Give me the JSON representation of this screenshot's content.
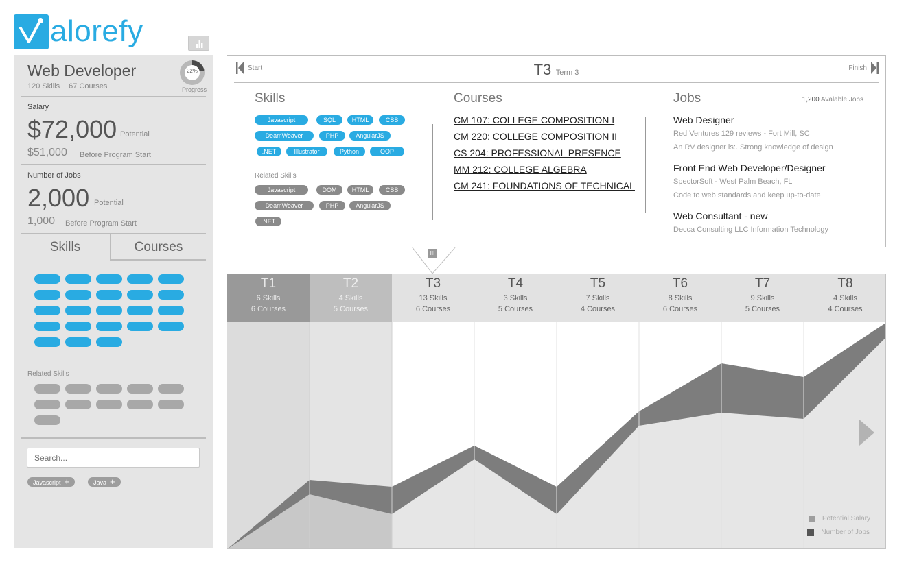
{
  "brand": {
    "logo_text": "alorefy",
    "color": "#29abe2"
  },
  "sidebar": {
    "title": "Web Developer",
    "skills_count": "120 Skills",
    "courses_count": "67 Courses",
    "progress_value": "22%",
    "progress_label": "Progress",
    "progress_fraction": 0.22,
    "salary": {
      "label": "Salary",
      "potential_value": "$72,000",
      "potential_note": "Potential",
      "before_value": "$51,000",
      "before_note": "Before Program Start"
    },
    "jobs": {
      "label": "Number of Jobs",
      "potential_value": "2,000",
      "potential_note": "Potential",
      "before_value": "1,000",
      "before_note": "Before Program Start"
    },
    "tabs": [
      "Skills",
      "Courses"
    ],
    "skill_pill_count": 23,
    "related_label": "Related Skills",
    "related_pill_count": 11,
    "search_placeholder": "Search...",
    "tags": [
      "Javascript",
      "Java"
    ]
  },
  "panel": {
    "start_label": "Start",
    "finish_label": "Finish",
    "term_big": "T3",
    "term_small": "Term 3",
    "pointer_label": "III",
    "skills_heading": "Skills",
    "skills": [
      "Javascript",
      "SQL",
      "HTML",
      "CSS",
      "DeamWeaver",
      "PHP",
      "AngularJS",
      ".NET",
      "Illustrator",
      "Python",
      "OOP"
    ],
    "related_heading": "Related Skills",
    "related_skills": [
      "Javascript",
      "DOM",
      "HTML",
      "CSS",
      "DeamWeaver",
      "PHP",
      "AngularJS",
      ".NET"
    ],
    "courses_heading": "Courses",
    "courses": [
      "CM 107: COLLEGE COMPOSITION I",
      "CM 220: COLLEGE COMPOSITION II",
      "CS 204: PROFESSIONAL PRESENCE",
      "MM 212: COLLEGE ALGEBRA",
      "CM 241: FOUNDATIONS OF TECHNICAL"
    ],
    "jobs_heading": "Jobs",
    "jobs_count_number": "1,200",
    "jobs_count_text": "Avalable Jobs",
    "jobs": [
      {
        "title": "Web Designer",
        "lines": [
          "Red Ventures  129 reviews - Fort Mill, SC",
          "An RV designer is:. Strong knowledge of design"
        ]
      },
      {
        "title": "Front End Web Developer/Designer",
        "lines": [
          "SpectorSoft - West Palm Beach, FL",
          "Code to web standards and keep up-to-date"
        ]
      },
      {
        "title": "Web Consultant - new",
        "lines": [
          "Decca Consulting LLC Information Technology"
        ]
      }
    ]
  },
  "timeline": {
    "terms": [
      {
        "name": "T1",
        "skills": "6 Skills",
        "courses": "6 Courses",
        "state": "dark"
      },
      {
        "name": "T2",
        "skills": "4 Skills",
        "courses": "5 Courses",
        "state": "mid"
      },
      {
        "name": "T3",
        "skills": "13 Skills",
        "courses": "6 Courses",
        "state": "light"
      },
      {
        "name": "T4",
        "skills": "3 Skills",
        "courses": "5 Courses",
        "state": "light"
      },
      {
        "name": "T5",
        "skills": "7 Skills",
        "courses": "4 Courses",
        "state": "light"
      },
      {
        "name": "T6",
        "skills": "8 Skills",
        "courses": "6 Courses",
        "state": "light"
      },
      {
        "name": "T7",
        "skills": "9 Skills",
        "courses": "5 Courses",
        "state": "light"
      },
      {
        "name": "T8",
        "skills": "4 Skills",
        "courses": "4 Courses",
        "state": "light"
      }
    ],
    "legend": [
      {
        "label": "Potential Salary",
        "color": "#9e9e9e"
      },
      {
        "label": "Number of Jobs",
        "color": "#555555"
      }
    ]
  },
  "colors": {
    "accent": "#29abe2",
    "band_dark": "#777777",
    "area_light": "#e6e6e6"
  }
}
